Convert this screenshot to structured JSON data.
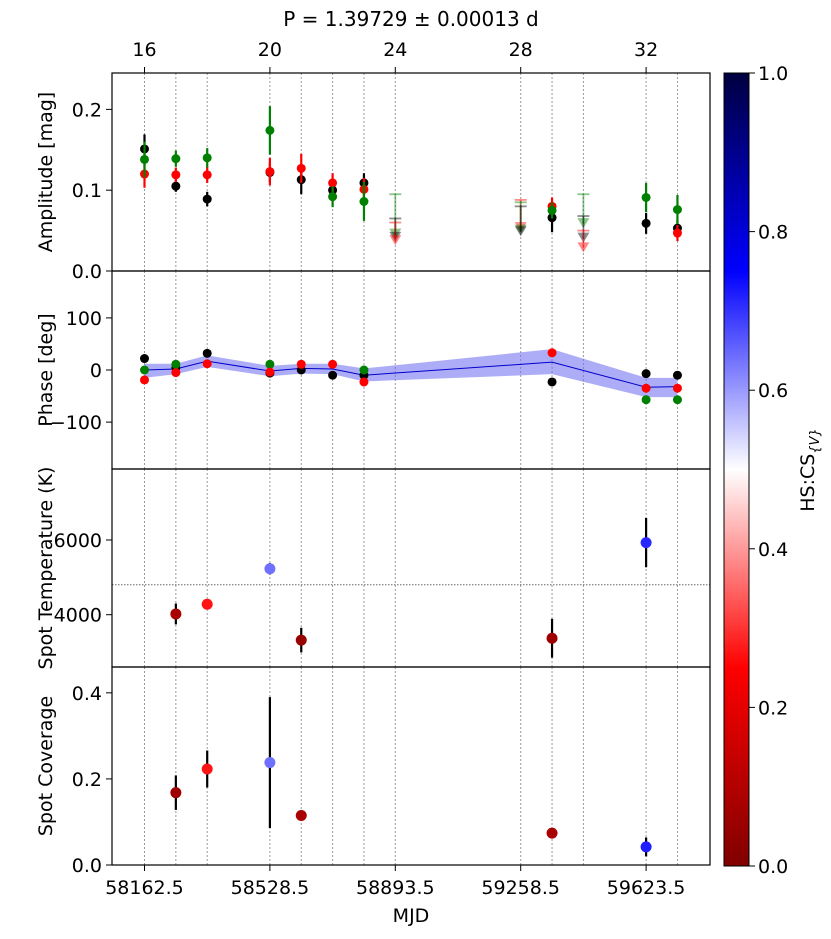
{
  "chart_data": {
    "type": "scatter",
    "title": "P = 1.39729 ± 0.00013 d",
    "xlabel": "MJD",
    "top_axis": {
      "label_values": [
        "16",
        "20",
        "24",
        "28",
        "32"
      ],
      "tick_positions_sector": [
        16,
        20,
        24,
        28,
        32
      ]
    },
    "x_ticks": [
      "58162.5",
      "58528.5",
      "58893.5",
      "59258.5",
      "59623.5"
    ],
    "vertical_reference_sectors": [
      16,
      17,
      18,
      20,
      21,
      22,
      23,
      24,
      28,
      29,
      30,
      32,
      33
    ],
    "colors": {
      "black": "#000000",
      "green": "#008000",
      "red": "#ff0000",
      "band": "#5555ee",
      "band_line": "#0000cc"
    },
    "panels": [
      {
        "name": "amplitude",
        "ylabel": "Amplitude [mag]",
        "ylim": [
          0,
          0.245
        ],
        "yticks": [
          {
            "v": 0,
            "label": "0.0"
          },
          {
            "v": 0.1,
            "label": "0.1"
          },
          {
            "v": 0.2,
            "label": "0.2"
          }
        ],
        "series": [
          {
            "name": "black",
            "color": "#000000",
            "points": [
              {
                "s": 16,
                "y": 0.151,
                "e": 0.018
              },
              {
                "s": 17,
                "y": 0.105,
                "e": 0.007
              },
              {
                "s": 18,
                "y": 0.089,
                "e": 0.009
              },
              {
                "s": 20,
                "y": 0.122,
                "e": 0.012
              },
              {
                "s": 21,
                "y": 0.113,
                "e": 0.018
              },
              {
                "s": 22,
                "y": 0.1,
                "e": 0.012
              },
              {
                "s": 23,
                "y": 0.109,
                "e": 0.012
              },
              {
                "s": 29,
                "y": 0.066,
                "e": 0.018
              },
              {
                "s": 32,
                "y": 0.059,
                "e": 0.013
              },
              {
                "s": 33,
                "y": 0.053,
                "e": 0.01
              }
            ]
          },
          {
            "name": "red",
            "color": "#ff0000",
            "points": [
              {
                "s": 16,
                "y": 0.12,
                "e": 0.017
              },
              {
                "s": 17,
                "y": 0.119,
                "e": 0.009
              },
              {
                "s": 18,
                "y": 0.119,
                "e": 0.01
              },
              {
                "s": 20,
                "y": 0.123,
                "e": 0.017
              },
              {
                "s": 21,
                "y": 0.127,
                "e": 0.018
              },
              {
                "s": 22,
                "y": 0.109,
                "e": 0.012
              },
              {
                "s": 23,
                "y": 0.101,
                "e": 0.014
              },
              {
                "s": 29,
                "y": 0.08,
                "e": 0.011
              },
              {
                "s": 33,
                "y": 0.047,
                "e": 0.01
              }
            ]
          },
          {
            "name": "green",
            "color": "#008000",
            "points": [
              {
                "s": 16,
                "y": 0.138,
                "e": 0.022
              },
              {
                "s": 17,
                "y": 0.139,
                "e": 0.01
              },
              {
                "s": 18,
                "y": 0.14,
                "e": 0.012
              },
              {
                "s": 20,
                "y": 0.174,
                "e": 0.03
              },
              {
                "s": 22,
                "y": 0.092,
                "e": 0.013
              },
              {
                "s": 23,
                "y": 0.086,
                "e": 0.024
              },
              {
                "s": 29,
                "y": 0.075,
                "e": 0.01
              },
              {
                "s": 32,
                "y": 0.091,
                "e": 0.018
              },
              {
                "s": 33,
                "y": 0.076,
                "e": 0.018
              }
            ]
          }
        ],
        "upper_limits": [
          {
            "s": 24,
            "color": "#008000",
            "top": 0.095,
            "tip": 0.045
          },
          {
            "s": 24,
            "color": "#000000",
            "top": 0.065,
            "tip": 0.041
          },
          {
            "s": 24,
            "color": "#ff0000",
            "top": 0.06,
            "tip": 0.037
          },
          {
            "s": 28,
            "color": "#ff0000",
            "top": 0.088,
            "tip": 0.053
          },
          {
            "s": 28,
            "color": "#008000",
            "top": 0.085,
            "tip": 0.05
          },
          {
            "s": 28,
            "color": "#000000",
            "top": 0.08,
            "tip": 0.048
          },
          {
            "s": 30,
            "color": "#008000",
            "top": 0.095,
            "tip": 0.058
          },
          {
            "s": 30,
            "color": "#000000",
            "top": 0.068,
            "tip": 0.04
          },
          {
            "s": 30,
            "color": "#ff0000",
            "top": 0.05,
            "tip": 0.028
          }
        ]
      },
      {
        "name": "phase",
        "ylabel": "Phase [deg]",
        "ylim": [
          -190,
          190
        ],
        "yticks": [
          {
            "v": 100,
            "label": "100"
          },
          {
            "v": 0,
            "label": "0"
          },
          {
            "v": -100,
            "label": "−100"
          }
        ],
        "band": [
          {
            "s": 16,
            "mid": 0,
            "lo": -15,
            "hi": 12
          },
          {
            "s": 17,
            "mid": 2,
            "lo": -8,
            "hi": 12
          },
          {
            "s": 18,
            "mid": 17,
            "lo": 6,
            "hi": 28
          },
          {
            "s": 20,
            "mid": -2,
            "lo": -12,
            "hi": 8
          },
          {
            "s": 21,
            "mid": 3,
            "lo": -7,
            "hi": 12
          },
          {
            "s": 22,
            "mid": 2,
            "lo": -8,
            "hi": 12
          },
          {
            "s": 23,
            "mid": -10,
            "lo": -22,
            "hi": 3
          },
          {
            "s": 29,
            "mid": 15,
            "lo": -8,
            "hi": 40
          },
          {
            "s": 32,
            "mid": -33,
            "lo": -52,
            "hi": -15
          },
          {
            "s": 33,
            "mid": -32,
            "lo": -52,
            "hi": -15
          }
        ],
        "series": [
          {
            "name": "black",
            "color": "#000000",
            "points": [
              {
                "s": 16,
                "y": 22
              },
              {
                "s": 17,
                "y": 4
              },
              {
                "s": 18,
                "y": 32
              },
              {
                "s": 20,
                "y": -6
              },
              {
                "s": 21,
                "y": 0
              },
              {
                "s": 22,
                "y": -10
              },
              {
                "s": 23,
                "y": -10
              },
              {
                "s": 29,
                "y": -23
              },
              {
                "s": 32,
                "y": -7
              },
              {
                "s": 33,
                "y": -10
              }
            ]
          },
          {
            "name": "green",
            "color": "#008000",
            "points": [
              {
                "s": 16,
                "y": 0
              },
              {
                "s": 17,
                "y": 11
              },
              {
                "s": 20,
                "y": 11
              },
              {
                "s": 23,
                "y": 0
              },
              {
                "s": 32,
                "y": -57
              },
              {
                "s": 33,
                "y": -57
              }
            ]
          },
          {
            "name": "red",
            "color": "#ff0000",
            "points": [
              {
                "s": 16,
                "y": -19
              },
              {
                "s": 17,
                "y": -5
              },
              {
                "s": 18,
                "y": 12
              },
              {
                "s": 20,
                "y": -4
              },
              {
                "s": 21,
                "y": 11
              },
              {
                "s": 22,
                "y": 11
              },
              {
                "s": 23,
                "y": -23
              },
              {
                "s": 29,
                "y": 33
              },
              {
                "s": 32,
                "y": -35
              },
              {
                "s": 33,
                "y": -35
              }
            ]
          }
        ]
      },
      {
        "name": "temperature",
        "ylabel": "Spot Temperature (K)",
        "ylim": [
          2600,
          7900
        ],
        "reference_line": 4800,
        "yticks": [
          {
            "v": 6000,
            "label": "6000"
          },
          {
            "v": 4000,
            "label": "4000"
          }
        ],
        "points": [
          {
            "s": 17,
            "y": 4020,
            "e": 280,
            "c": 0.08
          },
          {
            "s": 18,
            "y": 4280,
            "e": 0,
            "c": 0.27
          },
          {
            "s": 20,
            "y": 5230,
            "e": 150,
            "c": 0.64
          },
          {
            "s": 21,
            "y": 3320,
            "e": 330,
            "c": 0.05
          },
          {
            "s": 29,
            "y": 3370,
            "e": 520,
            "c": 0.06
          },
          {
            "s": 32,
            "y": 5930,
            "e": 660,
            "c": 0.71
          }
        ]
      },
      {
        "name": "coverage",
        "ylabel": "Spot Coverage",
        "ylim": [
          0,
          0.46
        ],
        "yticks": [
          {
            "v": 0.0,
            "label": "0.0"
          },
          {
            "v": 0.2,
            "label": "0.2"
          },
          {
            "v": 0.4,
            "label": "0.4"
          }
        ],
        "points": [
          {
            "s": 17,
            "y": 0.168,
            "e": 0.04,
            "c": 0.06
          },
          {
            "s": 18,
            "y": 0.223,
            "e": 0.043,
            "c": 0.27
          },
          {
            "s": 20,
            "y": 0.238,
            "e": 0.152,
            "c": 0.64
          },
          {
            "s": 21,
            "y": 0.115,
            "e": 0,
            "c": 0.08
          },
          {
            "s": 29,
            "y": 0.074,
            "e": 0,
            "c": 0.08
          },
          {
            "s": 32,
            "y": 0.042,
            "e": 0.022,
            "c": 0.72
          }
        ]
      }
    ],
    "colorbar": {
      "label": "HS:CS{V}",
      "range": [
        0.0,
        1.0
      ],
      "ticks": [
        "0.0",
        "0.2",
        "0.4",
        "0.6",
        "0.8",
        "1.0"
      ],
      "stops": [
        "#800000",
        "#ff0000",
        "#ffffff",
        "#0000ff",
        "#000040"
      ]
    }
  }
}
